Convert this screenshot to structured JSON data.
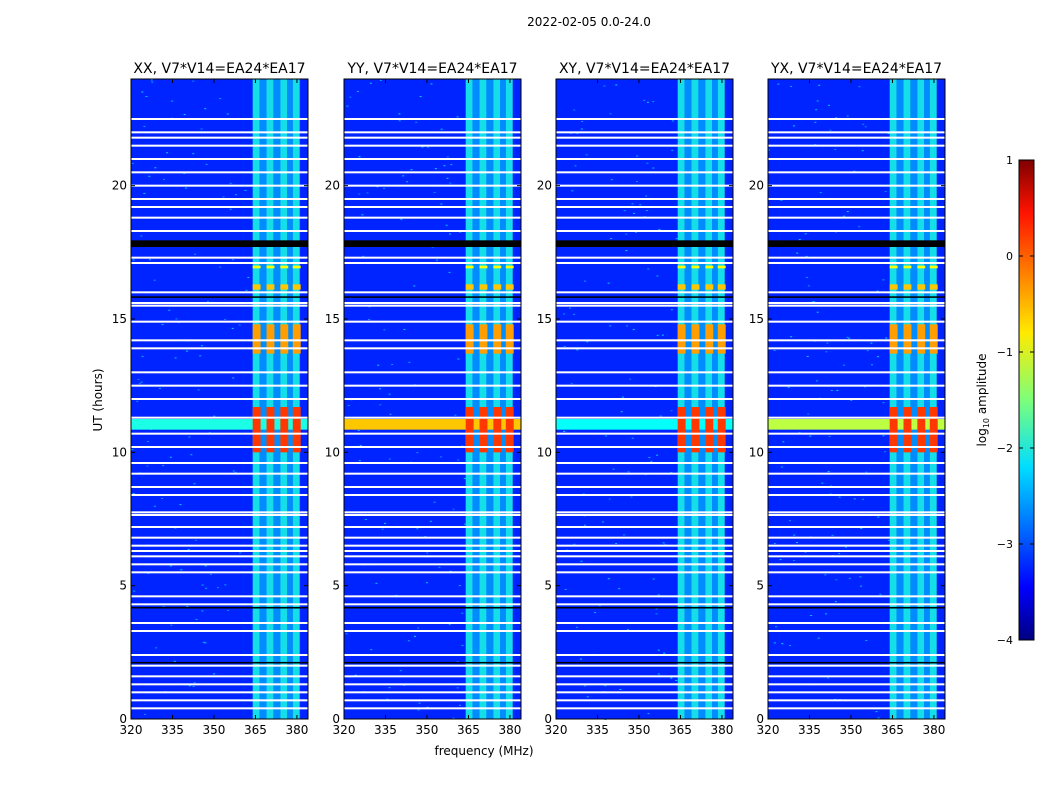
{
  "chart_data": {
    "type": "heatmap",
    "suptitle": "2022-02-05 0.0-24.0",
    "xlabel": "frequency (MHz)",
    "ylabel": "UT (hours)",
    "xlim": [
      320,
      384
    ],
    "ylim": [
      0,
      24
    ],
    "xticks": [
      320,
      335,
      350,
      365,
      380
    ],
    "yticks": [
      0,
      5,
      10,
      15,
      20
    ],
    "panels": [
      {
        "title": "XX, V7*V14=EA24*EA17",
        "band11_value": -2.0
      },
      {
        "title": "YY, V7*V14=EA24*EA17",
        "band11_value": -0.6
      },
      {
        "title": "XY, V7*V14=EA24*EA17",
        "band11_value": -2.1
      },
      {
        "title": "YX, V7*V14=EA24*EA17",
        "band11_value": -1.2
      }
    ],
    "background_value": -3.2,
    "rfi_columns_mhz": [
      [
        364,
        366.5,
        -2.0
      ],
      [
        366.5,
        369,
        -2.6
      ],
      [
        369,
        371.5,
        -2.0
      ],
      [
        371.5,
        374,
        -2.6
      ],
      [
        374,
        376.5,
        -2.0
      ],
      [
        376.5,
        378.5,
        -2.6
      ],
      [
        378.5,
        381,
        -2.0
      ]
    ],
    "rfi_range_mhz": [
      363.5,
      381.5
    ],
    "strong_blocks": [
      {
        "ut": [
          13.7,
          14.8
        ],
        "value": -0.4
      },
      {
        "ut": [
          10.0,
          11.7
        ],
        "value": 0.1
      },
      {
        "ut": [
          16.1,
          16.3
        ],
        "value": -0.6
      },
      {
        "ut": [
          16.9,
          17.0
        ],
        "value": -0.9
      }
    ],
    "flagged_rows_ut": [
      22.5,
      22.0,
      21.8,
      21.5,
      21.0,
      20.5,
      20.0,
      19.5,
      19.2,
      18.8,
      18.3,
      17.3,
      17.1,
      16.0,
      15.5,
      15.6,
      14.9,
      14.2,
      13.9,
      13.0,
      12.5,
      12.0,
      11.3,
      10.7,
      10.2,
      9.6,
      9.2,
      8.7,
      8.4,
      7.65,
      7.75,
      7.2,
      6.8,
      6.5,
      6.3,
      6.1,
      5.8,
      5.5,
      4.6,
      4.3,
      3.6,
      3.3,
      2.4,
      2.0,
      1.6,
      1.3,
      1.0,
      0.7,
      0.4
    ],
    "black_rows_ut": [
      [
        17.7,
        17.95
      ],
      [
        15.8,
        15.85
      ],
      [
        4.15,
        4.2
      ],
      [
        2.1,
        2.14
      ]
    ],
    "colorbar": {
      "label": "log10 amplitude",
      "label_main": "log",
      "label_sub": "10",
      "label_rest": " amplitude",
      "range": [
        -4,
        1
      ],
      "ticks": [
        1,
        0,
        -1,
        -2,
        -3,
        -4
      ],
      "tick_labels": [
        "1",
        "0",
        "−1",
        "−2",
        "−3",
        "−4"
      ],
      "colormap": "jet"
    }
  }
}
